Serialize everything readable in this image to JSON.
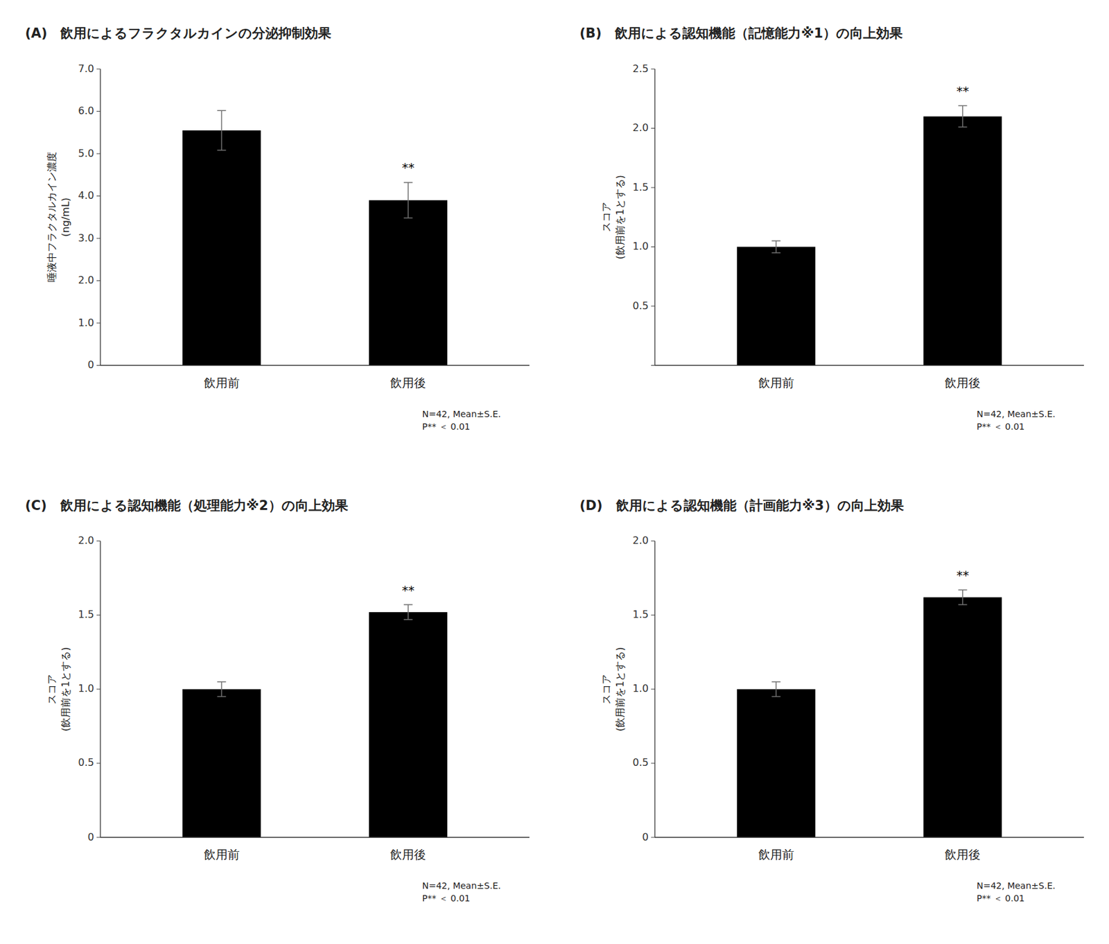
{
  "chart_data": [
    {
      "type": "bar",
      "title": "(A)　飲用によるフラクタルカインの分泌抑制効果",
      "y_label": "唾液中フラクタルカイン濃度\n(ng/mL)",
      "categories": [
        "飲用前",
        "飲用後"
      ],
      "values": [
        5.55,
        3.9
      ],
      "errors": [
        0.47,
        0.42
      ],
      "significance_labels": [
        null,
        "**"
      ],
      "annotation": "N=42, Mean±S.E.\nP** ＜ 0.01",
      "ylim": [
        0,
        7.0
      ],
      "yticks": [
        0,
        {
          "value": 1.0,
          "label": "1.0"
        },
        {
          "value": 2.0,
          "label": "2.0"
        },
        {
          "value": 3.0,
          "label": "3.0"
        },
        {
          "value": 4.0,
          "label": "4.0"
        },
        {
          "value": 5.0,
          "label": "5.0"
        },
        {
          "value": 6.0,
          "label": "6.0"
        },
        {
          "value": 7.0,
          "label": "7.0"
        }
      ],
      "color": "#000000",
      "error_color": "#707070",
      "grid": false
    },
    {
      "type": "bar",
      "title": "(B)　飲用による認知機能（記憶能力※1）の向上効果",
      "y_label": "スコア\n(飲用前を1とする)",
      "categories": [
        "飲用前",
        "飲用後"
      ],
      "values": [
        1.0,
        2.1
      ],
      "errors": [
        0.05,
        0.09
      ],
      "significance_labels": [
        null,
        "**"
      ],
      "annotation": "N=42, Mean±S.E.\nP** ＜ 0.01",
      "ylim": [
        0,
        2.5
      ],
      "yticks": [
        {
          "value": 0,
          "label": null
        },
        0.5,
        {
          "value": 1.0,
          "label": "1.0"
        },
        1.5,
        {
          "value": 2.0,
          "label": "2.0"
        },
        2.5
      ],
      "color": "#000000",
      "error_color": "#707070",
      "grid": false
    },
    {
      "type": "bar",
      "title": "(C)　飲用による認知機能（処理能力※2）の向上効果",
      "y_label": "スコア\n(飲用前を1とする)",
      "categories": [
        "飲用前",
        "飲用後"
      ],
      "values": [
        1.0,
        1.52
      ],
      "errors": [
        0.05,
        0.05
      ],
      "significance_labels": [
        null,
        "**"
      ],
      "annotation": "N=42, Mean±S.E.\nP** ＜ 0.01",
      "ylim": [
        0,
        2.0
      ],
      "yticks": [
        0,
        0.5,
        {
          "value": 1.0,
          "label": "1.0"
        },
        1.5,
        {
          "value": 2.0,
          "label": "2.0"
        }
      ],
      "color": "#000000",
      "error_color": "#707070",
      "grid": false
    },
    {
      "type": "bar",
      "title": "(D)　飲用による認知機能（計画能力※3）の向上効果",
      "y_label": "スコア\n(飲用前を1とする)",
      "categories": [
        "飲用前",
        "飲用後"
      ],
      "values": [
        1.0,
        1.62
      ],
      "errors": [
        0.05,
        0.05
      ],
      "significance_labels": [
        null,
        "**"
      ],
      "annotation": "N=42, Mean±S.E.\nP** ＜ 0.01",
      "ylim": [
        0,
        2.0
      ],
      "yticks": [
        0,
        0.5,
        {
          "value": 1.0,
          "label": "1.0"
        },
        1.5,
        {
          "value": 2.0,
          "label": "2.0"
        }
      ],
      "color": "#000000",
      "error_color": "#707070",
      "grid": false
    }
  ]
}
